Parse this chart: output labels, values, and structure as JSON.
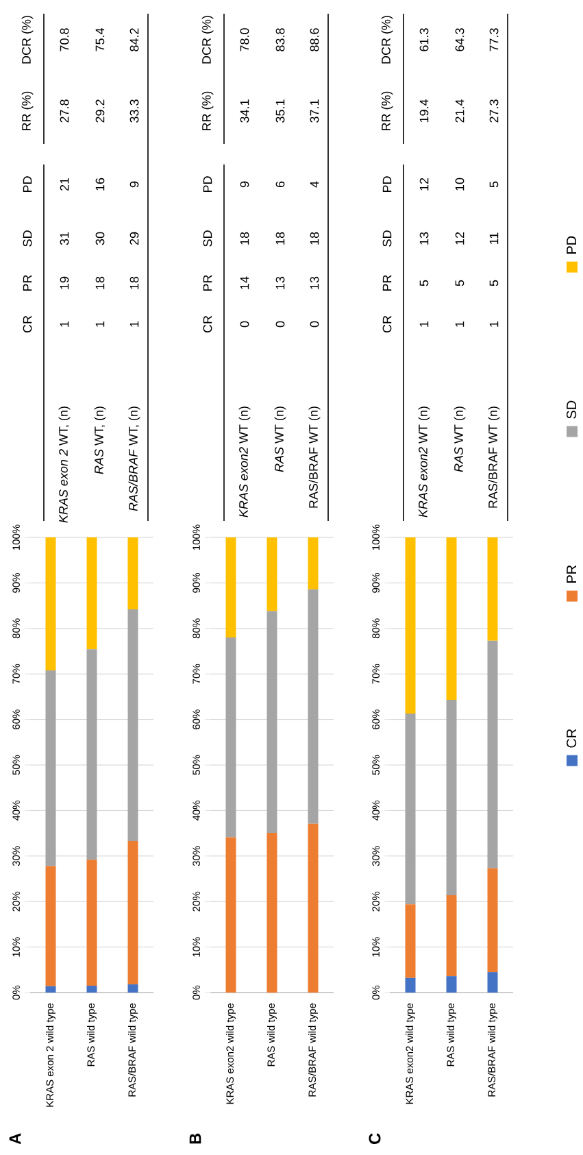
{
  "chart_data": [
    {
      "type": "bar",
      "stacked": true,
      "title": "A",
      "categories": [
        "KRAS exon 2 wild type",
        "RAS wild type",
        "RAS/BRAF wild type"
      ],
      "series": [
        {
          "color": "#4472c4",
          "values": [
            1.4,
            1.5,
            1.8
          ]
        },
        {
          "color": "#ed7d31",
          "values": [
            26.4,
            27.7,
            31.5
          ]
        },
        {
          "color": "#a5a5a5",
          "values": [
            43.0,
            46.2,
            50.9
          ]
        },
        {
          "color": "#ffc000",
          "values": [
            29.2,
            24.6,
            15.8
          ]
        }
      ],
      "ylim": [
        0,
        100
      ],
      "yticks": [
        {
          "value": 0,
          "label": "0%"
        },
        {
          "value": 10,
          "label": "10%"
        },
        {
          "value": 20,
          "label": "20%"
        },
        {
          "value": 30,
          "label": "30%"
        },
        {
          "value": 40,
          "label": "40%"
        },
        {
          "value": 50,
          "label": "50%"
        },
        {
          "value": 60,
          "label": "60%"
        },
        {
          "value": 70,
          "label": "70%"
        },
        {
          "value": 80,
          "label": "80%"
        },
        {
          "value": 90,
          "label": "90%"
        },
        {
          "value": 100,
          "label": "100%"
        }
      ],
      "grid": "y",
      "annotations": [
        "CR",
        "PR",
        "SD",
        "PD",
        "RR (%)",
        "DCR (%)",
        "*KRAS exon 2* WT, (n)",
        "1",
        "19",
        "31",
        "21",
        "27.8",
        "70.8",
        "*RAS* WT, (n)",
        "1",
        "18",
        "30",
        "16",
        "29.2",
        "75.4",
        "*RAS/BRAF* WT, (n)",
        "1",
        "18",
        "29",
        "9",
        "33.3",
        "84.2"
      ]
    },
    {
      "type": "bar",
      "stacked": true,
      "title": "B",
      "categories": [
        "KRAS exon2 wild type",
        "RAS wild type",
        "RAS/BRAF wild type"
      ],
      "series": [
        {
          "color": "#4472c4",
          "values": [
            0,
            0,
            0
          ]
        },
        {
          "color": "#ed7d31",
          "values": [
            34.1,
            35.1,
            37.1
          ]
        },
        {
          "color": "#a5a5a5",
          "values": [
            43.9,
            48.7,
            51.5
          ]
        },
        {
          "color": "#ffc000",
          "values": [
            22.0,
            16.2,
            11.4
          ]
        }
      ],
      "ylim": [
        0,
        100
      ],
      "yticks": [
        {
          "value": 0,
          "label": "0%"
        },
        {
          "value": 10,
          "label": "10%"
        },
        {
          "value": 20,
          "label": "20%"
        },
        {
          "value": 30,
          "label": "30%"
        },
        {
          "value": 40,
          "label": "40%"
        },
        {
          "value": 50,
          "label": "50%"
        },
        {
          "value": 60,
          "label": "60%"
        },
        {
          "value": 70,
          "label": "70%"
        },
        {
          "value": 80,
          "label": "80%"
        },
        {
          "value": 90,
          "label": "90%"
        },
        {
          "value": 100,
          "label": "100%"
        }
      ],
      "grid": "y",
      "annotations": [
        "CR",
        "PR",
        "SD",
        "PD",
        "RR (%)",
        "DCR (%)",
        "*KRAS exon2* WT (n)",
        "0",
        "14",
        "18",
        "9",
        "34.1",
        "78.0",
        "*RAS* WT (n)",
        "0",
        "13",
        "18",
        "6",
        "35.1",
        "83.8",
        "RAS/BRAF WT (n)",
        "0",
        "13",
        "18",
        "4",
        "37.1",
        "88.6"
      ]
    },
    {
      "type": "bar",
      "stacked": true,
      "title": "C",
      "categories": [
        "KRAS exon2 wild type",
        "RAS wild type",
        "RAS/BRAF wild type"
      ],
      "series": [
        {
          "name": "CR",
          "color": "#4472c4",
          "values": [
            3.2,
            3.6,
            4.5
          ]
        },
        {
          "name": "PR",
          "color": "#ed7d31",
          "values": [
            16.2,
            17.8,
            22.8
          ]
        },
        {
          "name": "SD",
          "color": "#a5a5a5",
          "values": [
            41.9,
            42.9,
            50.0
          ]
        },
        {
          "name": "PD",
          "color": "#ffc000",
          "values": [
            38.7,
            35.7,
            22.7
          ]
        }
      ],
      "ylim": [
        0,
        100
      ],
      "yticks": [
        {
          "value": 0,
          "label": "0%"
        },
        {
          "value": 10,
          "label": "10%"
        },
        {
          "value": 20,
          "label": "20%"
        },
        {
          "value": 30,
          "label": "30%"
        },
        {
          "value": 40,
          "label": "40%"
        },
        {
          "value": 50,
          "label": "50%"
        },
        {
          "value": 60,
          "label": "60%"
        },
        {
          "value": 70,
          "label": "70%"
        },
        {
          "value": 80,
          "label": "80%"
        },
        {
          "value": 90,
          "label": "90%"
        },
        {
          "value": 100,
          "label": "100%"
        }
      ],
      "grid": "y",
      "legend": "right",
      "annotations": [
        "CR",
        "PR",
        "SD",
        "PD",
        "RR (%)",
        "DCR (%)",
        "*KRAS exon2* WT (n)",
        "1",
        "5",
        "13",
        "12",
        "19.4",
        "61.3",
        "*RAS* WT (n)",
        "1",
        "5",
        "12",
        "10",
        "21.4",
        "64.3",
        "RAS/BRAF WT (n)",
        "1",
        "5",
        "11",
        "5",
        "27.3",
        "77.3"
      ]
    }
  ]
}
